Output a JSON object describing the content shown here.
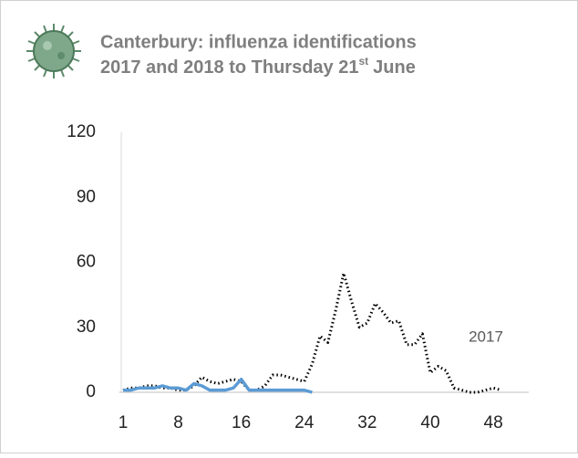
{
  "chart_data": {
    "type": "line",
    "title": "Canterbury: influenza identifications",
    "subtitle": {
      "text": "2017 and 2018 to Thursday 21",
      "superscript": "st",
      "after": "June"
    },
    "xlim": [
      0.5,
      52.5
    ],
    "xticks": [
      1,
      8,
      16,
      24,
      32,
      40,
      48
    ],
    "ylim": [
      0,
      120
    ],
    "yticks": [
      0,
      30,
      60,
      90,
      120
    ],
    "grid": false,
    "series": [
      {
        "name": "2017",
        "color": "#000000",
        "dash": "dotted",
        "x": [
          1,
          2,
          3,
          4,
          5,
          6,
          7,
          8,
          9,
          10,
          11,
          12,
          13,
          14,
          15,
          16,
          17,
          18,
          19,
          20,
          21,
          22,
          23,
          24,
          25,
          26,
          27,
          28,
          29,
          30,
          31,
          32,
          33,
          34,
          35,
          36,
          37,
          38,
          39,
          40,
          41,
          42,
          43,
          44,
          45,
          46,
          47,
          48,
          49
        ],
        "values": [
          1,
          2,
          2,
          3,
          3,
          2,
          2,
          1,
          1,
          3,
          7,
          5,
          4,
          5,
          6,
          5,
          1,
          1,
          3,
          8,
          8,
          7,
          6,
          5,
          13,
          26,
          23,
          38,
          55,
          42,
          30,
          32,
          41,
          37,
          32,
          33,
          22,
          22,
          27,
          9,
          12,
          10,
          2,
          1,
          0,
          0,
          1,
          2,
          1
        ]
      },
      {
        "color": "#5b9bd5",
        "dash": "solid",
        "x": [
          1,
          2,
          3,
          4,
          5,
          6,
          7,
          8,
          9,
          10,
          11,
          12,
          13,
          14,
          15,
          16,
          17,
          18,
          19,
          20,
          21,
          22,
          23,
          24,
          25
        ],
        "values": [
          1,
          1,
          2,
          2,
          2,
          3,
          2,
          2,
          1,
          4,
          3,
          1,
          1,
          1,
          2,
          6,
          1,
          1,
          1,
          1,
          1,
          1,
          1,
          1,
          0
        ]
      }
    ]
  }
}
